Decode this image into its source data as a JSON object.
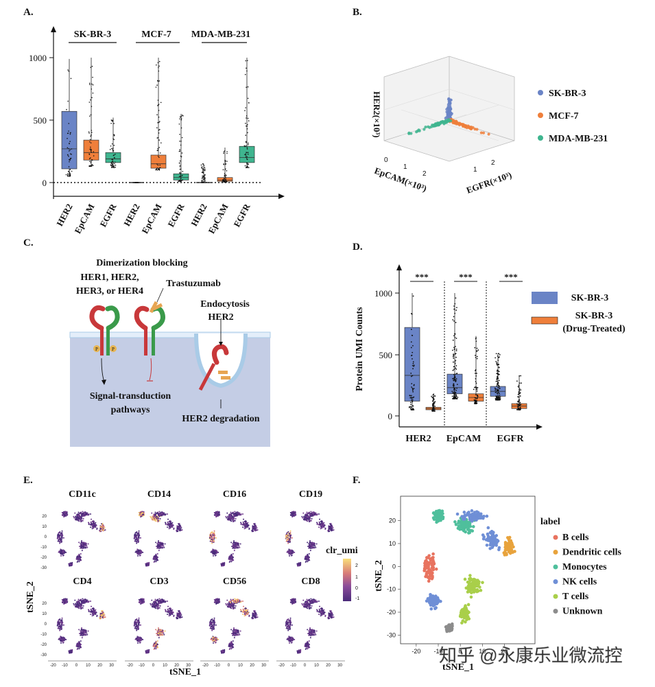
{
  "panels": {
    "a": {
      "letter": "A.",
      "groups": [
        "SK-BR-3",
        "MCF-7",
        "MDA-MB-231"
      ],
      "xticks": [
        "HER2",
        "EpCAM",
        "EGFR",
        "HER2",
        "EpCAM",
        "EGFR",
        "HER2",
        "EpCAM",
        "EGFR"
      ],
      "yticks": [
        "1000",
        "500",
        "0"
      ]
    },
    "b": {
      "letter": "B.",
      "axis_z": "HER2(×10³)",
      "axis_x": "EpCAM(×10³)",
      "axis_y": "EGFR(×10³)",
      "legend": [
        "SK-BR-3",
        "MCF-7",
        "MDA-MB-231"
      ],
      "colors": [
        "#6a84c6",
        "#ef7f3b",
        "#3fb58f"
      ]
    },
    "c": {
      "letter": "C.",
      "dimerization": "Dimerization blocking",
      "her_line1": "HER1, HER2,",
      "her_line2": "HER3, or HER4",
      "trastuzumab": "Trastuzumab",
      "endocytosis": "Endocytosis",
      "her2": "HER2",
      "signal_line1": "Signal-transduction",
      "signal_line2": "pathways",
      "degradation": "HER2 degradation",
      "phospho": "P"
    },
    "d": {
      "letter": "D.",
      "ylabel": "Protein UMI Counts",
      "yticks": [
        "1000",
        "500",
        "0"
      ],
      "sig": [
        "***",
        "***",
        "***"
      ],
      "categories": [
        "HER2",
        "EpCAM",
        "EGFR"
      ],
      "legend1": "SK-BR-3",
      "legend2a": "SK-BR-3",
      "legend2b": "(Drug-Treated)"
    },
    "e": {
      "letter": "E.",
      "markers": [
        "CD11c",
        "CD14",
        "CD16",
        "CD19",
        "CD4",
        "CD3",
        "CD56",
        "CD8"
      ],
      "ylabel": "tSNE_2",
      "xlabel": "tSNE_1",
      "colorbar_title": "clr_umi",
      "colorbar_ticks": [
        "2",
        "1",
        "0",
        "-1"
      ],
      "yticks": [
        "20",
        "10",
        "0",
        "-10",
        "-20",
        "-30"
      ],
      "xticks": [
        "-20",
        "-10",
        "0",
        "10",
        "20",
        "30"
      ]
    },
    "f": {
      "letter": "F.",
      "ylabel": "tSNE_2",
      "xlabel": "tSNE_1",
      "legend_title": "label",
      "legend": [
        "B cells",
        "Dendritic cells",
        "Monocytes",
        "NK cells",
        "T cells",
        "Unknown"
      ],
      "colors": [
        "#e8735f",
        "#e8a33c",
        "#4fbf9c",
        "#6f8fd6",
        "#a9cf4a",
        "#8c8c8c"
      ],
      "yticks": [
        "20",
        "10",
        "0",
        "-10",
        "-20",
        "-30"
      ],
      "xticks": [
        "-20",
        "-10",
        "0",
        "10",
        "20"
      ]
    }
  },
  "chart_data": [
    {
      "type": "box",
      "panel": "A",
      "categories": [
        "HER2",
        "EpCAM",
        "EGFR",
        "HER2",
        "EpCAM",
        "EGFR",
        "HER2",
        "EpCAM",
        "EGFR"
      ],
      "groups": [
        "SK-BR-3",
        "SK-BR-3",
        "SK-BR-3",
        "MCF-7",
        "MCF-7",
        "MCF-7",
        "MDA-MB-231",
        "MDA-MB-231",
        "MDA-MB-231"
      ],
      "colors": [
        "#6a84c6",
        "#ef7f3b",
        "#3fb58f",
        "#6a84c6",
        "#ef7f3b",
        "#3fb58f",
        "#6a84c6",
        "#ef7f3b",
        "#3fb58f"
      ],
      "q1": [
        110,
        180,
        160,
        0,
        115,
        20,
        0,
        10,
        160
      ],
      "median": [
        270,
        240,
        190,
        0,
        150,
        40,
        0,
        20,
        200
      ],
      "q3": [
        570,
        340,
        240,
        0,
        220,
        70,
        0,
        40,
        290
      ],
      "whisker_low": [
        50,
        130,
        120,
        0,
        100,
        10,
        0,
        5,
        120
      ],
      "whisker_high": [
        990,
        1000,
        520,
        0,
        1000,
        550,
        150,
        280,
        1000
      ],
      "ylim": [
        0,
        1000
      ]
    },
    {
      "type": "box",
      "panel": "D",
      "categories": [
        "HER2",
        "EpCAM",
        "EGFR"
      ],
      "series": [
        {
          "name": "SK-BR-3",
          "color": "#6a84c6",
          "q1": [
            120,
            180,
            160
          ],
          "median": [
            330,
            230,
            200
          ],
          "q3": [
            720,
            340,
            240
          ],
          "whisker_low": [
            50,
            140,
            130
          ],
          "whisker_high": [
            1000,
            1000,
            510
          ]
        },
        {
          "name": "SK-BR-3 (Drug-Treated)",
          "color": "#ef7f3b",
          "q1": [
            50,
            120,
            60
          ],
          "median": [
            60,
            150,
            80
          ],
          "q3": [
            70,
            180,
            100
          ],
          "whisker_low": [
            40,
            100,
            50
          ],
          "whisker_high": [
            180,
            650,
            330
          ]
        }
      ],
      "ylim": [
        0,
        1000
      ]
    }
  ]
}
